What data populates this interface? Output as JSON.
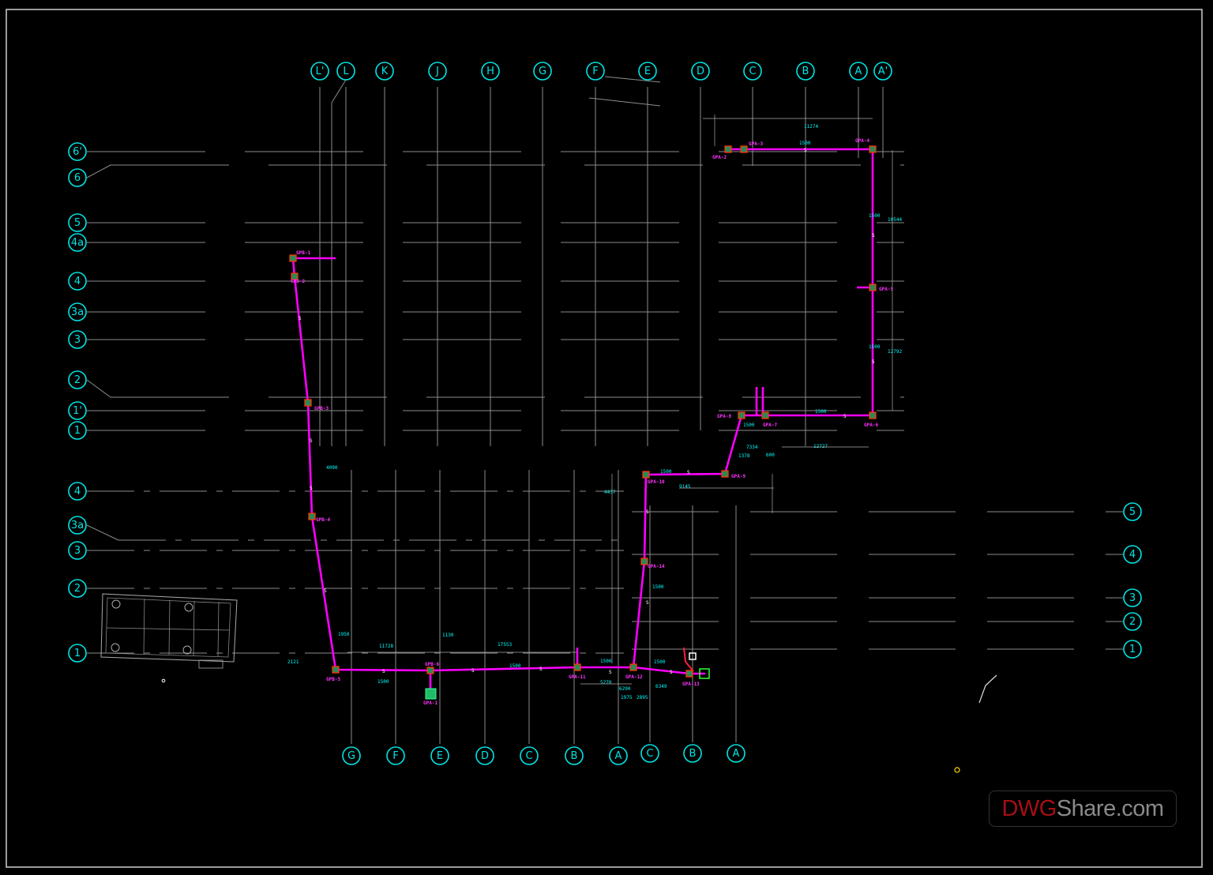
{
  "drawing": {
    "colors": {
      "background": "#000000",
      "grid": "#8c8c8c",
      "bubble": "#00e5e5",
      "pipe": "#ff00ff",
      "node_border": "#ff3300",
      "node_fill": "#33cc66",
      "dimension": "#00ffff",
      "frame": "#cfcfcf"
    },
    "upper_grid": {
      "columns": [
        "L'",
        "L",
        "K",
        "J",
        "H",
        "G",
        "F",
        "E",
        "D",
        "C",
        "B",
        "A",
        "A'"
      ],
      "rows": [
        "6'",
        "6",
        "5",
        "4a",
        "4",
        "3a",
        "3",
        "2",
        "1'",
        "1"
      ]
    },
    "lower_left_grid": {
      "columns": [
        "G",
        "F",
        "E",
        "D",
        "C",
        "B",
        "A"
      ],
      "rows": [
        "4",
        "3a",
        "3",
        "2",
        "1"
      ]
    },
    "lower_right_grid": {
      "columns": [
        "C",
        "B",
        "A"
      ],
      "rows": [
        "5",
        "4",
        "3",
        "2",
        "1"
      ]
    },
    "pipe_tags": [
      "GPB-1",
      "GPB-2",
      "GPB-3",
      "GPB-4",
      "GPB-5",
      "GPB-6",
      "GPA-11",
      "GPA-12",
      "GPA-13",
      "GPA-14",
      "GPA-10",
      "GPA-9",
      "GPA-8",
      "GPA-7",
      "GPA-6",
      "GPA-5",
      "GPA-4",
      "GPA-3",
      "GPA-2",
      "GPA-1"
    ],
    "dimensions": [
      "1500",
      "1500",
      "1500",
      "1500",
      "1500",
      "1500",
      "1500",
      "1500",
      "1500",
      "11274",
      "17553",
      "11728",
      "12727",
      "7334",
      "4090",
      "1950",
      "2121",
      "1130",
      "5270",
      "6290",
      "2895",
      "1975",
      "9145",
      "4437",
      "1378",
      "6349",
      "1500",
      "10544",
      "12792",
      "1500",
      "600"
    ],
    "slope_marker": "S"
  },
  "watermark": {
    "brand_red": "DWG",
    "brand_gray": "Share.com"
  }
}
